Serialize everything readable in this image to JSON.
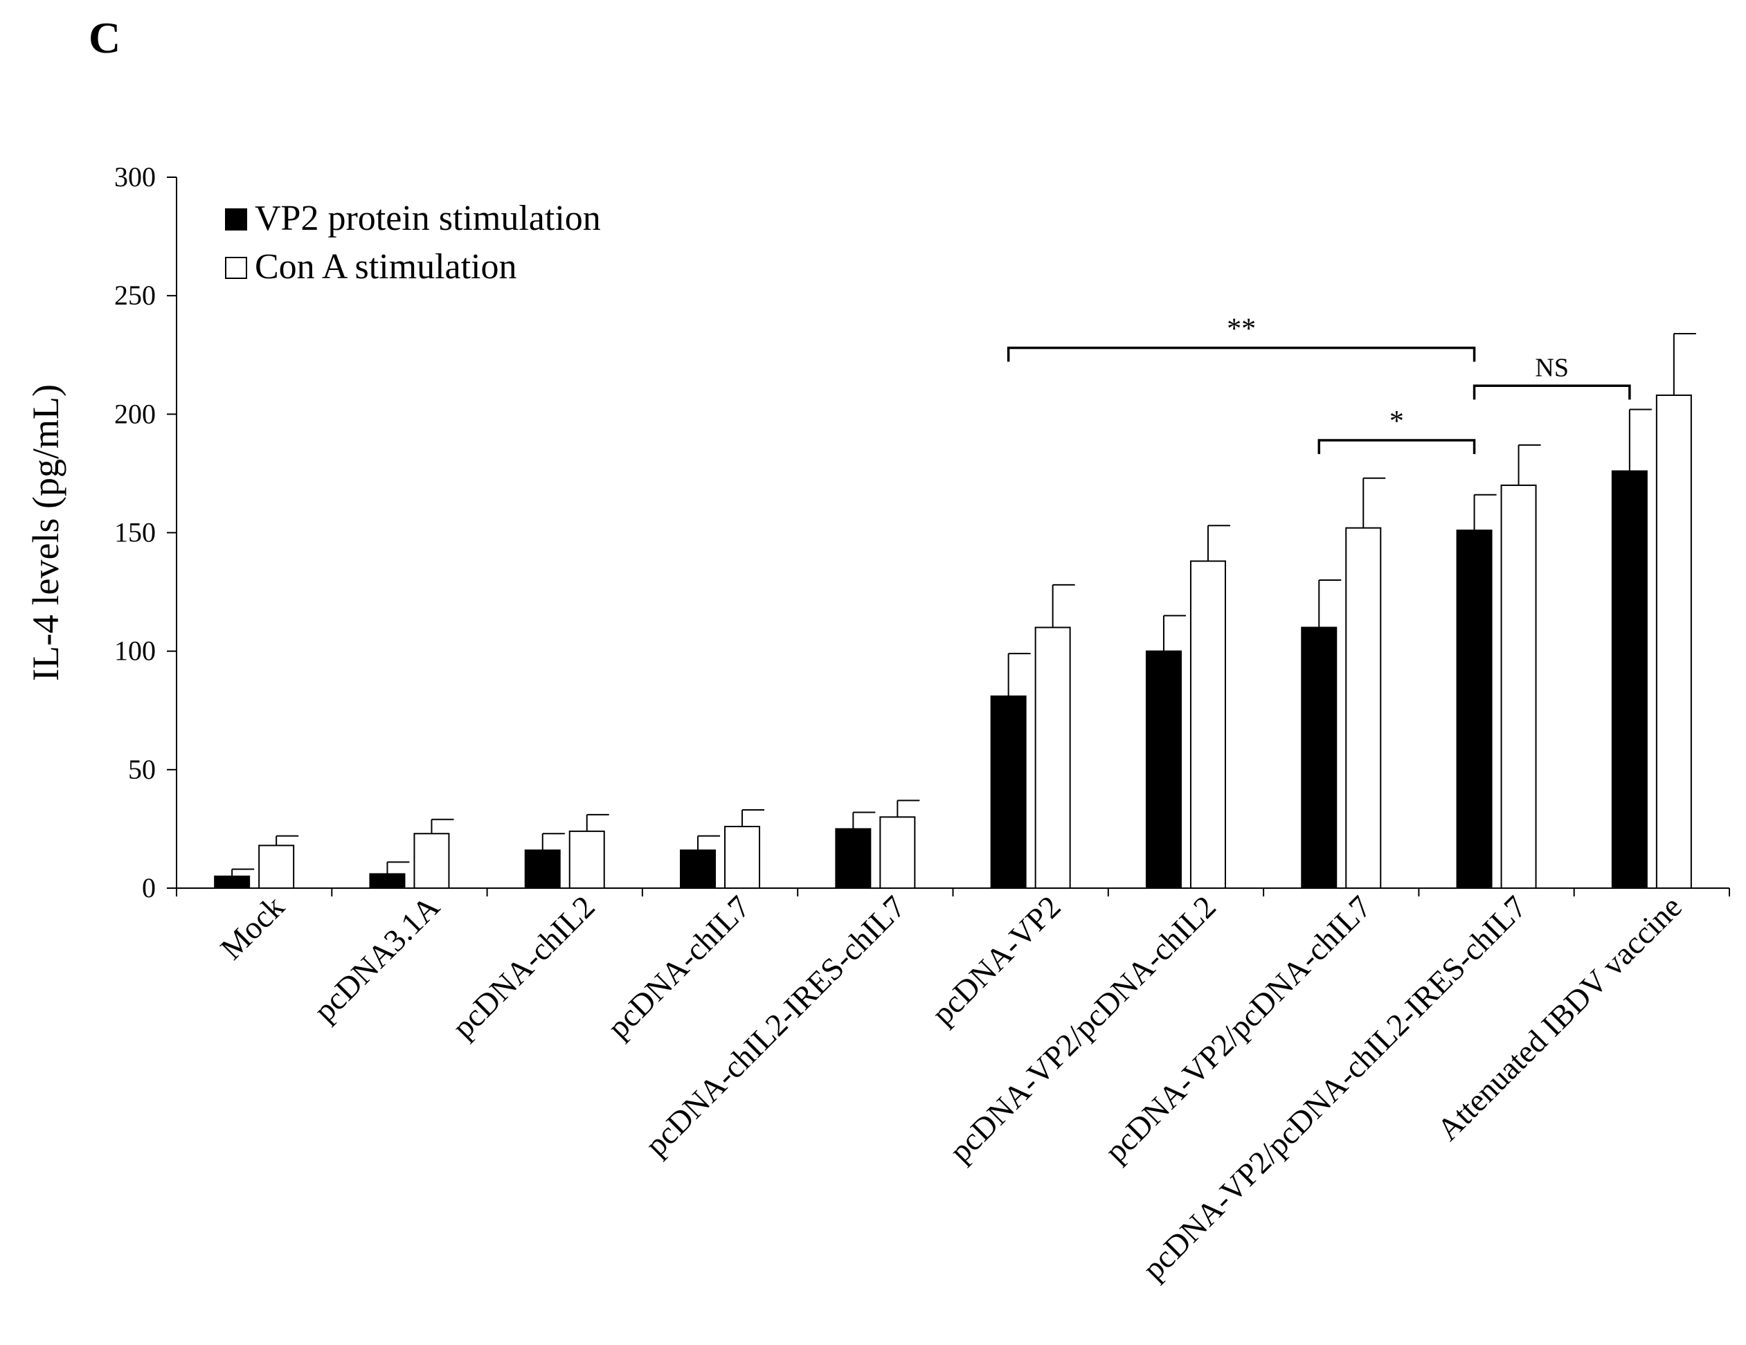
{
  "panel_label": "C",
  "chart_data": {
    "type": "bar",
    "title": "",
    "xlabel": "",
    "ylabel": "IL-4 levels (pg/mL)",
    "ylim": [
      0,
      300
    ],
    "yticks": [
      0,
      50,
      100,
      150,
      200,
      250,
      300
    ],
    "grid": false,
    "legend_position": "top-left",
    "categories": [
      "Mock",
      "pcDNA3.1A",
      "pcDNA-chIL2",
      "pcDNA-chIL7",
      "pcDNA-chIL2-IRES-chIL7",
      "pcDNA-VP2",
      "pcDNA-VP2/pcDNA-chIL2",
      "pcDNA-VP2/pcDNA-chIL7",
      "pcDNA-VP2/pcDNA-chIL2-IRES-chIL7",
      "Attenuated IBDV vaccine"
    ],
    "series": [
      {
        "name": "VP2 protein stimulation",
        "fill": "#000000",
        "values": [
          5,
          6,
          16,
          16,
          25,
          81,
          100,
          110,
          151,
          176
        ],
        "errors": [
          3,
          5,
          7,
          6,
          7,
          18,
          15,
          20,
          15,
          26
        ]
      },
      {
        "name": "Con A stimulation",
        "fill": "#ffffff",
        "values": [
          18,
          23,
          24,
          26,
          30,
          110,
          138,
          152,
          170,
          208
        ],
        "errors": [
          4,
          6,
          7,
          7,
          7,
          18,
          15,
          21,
          17,
          26
        ]
      }
    ],
    "annotations": [
      {
        "label": "**",
        "from_category": 5,
        "to_category": 8,
        "level": 228
      },
      {
        "label": "NS",
        "from_category": 8,
        "to_category": 9,
        "level": 212
      },
      {
        "label": "*",
        "from_category": 7,
        "to_category": 8,
        "level": 189
      }
    ]
  }
}
